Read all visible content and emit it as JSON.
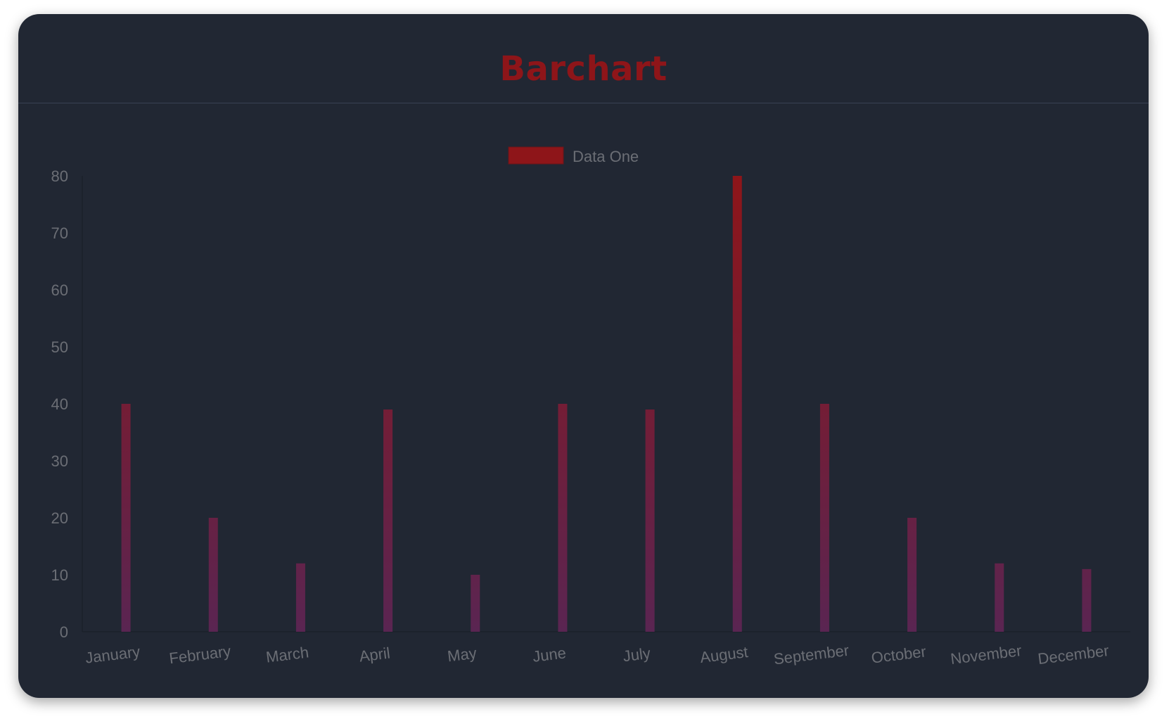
{
  "header": {
    "title": "Barchart"
  },
  "colors": {
    "background": "#212733",
    "title": "#8e1519",
    "bar_top": "#8e1519",
    "bar_bottom": "#5a2552",
    "text": "#6b6e75"
  },
  "chart_data": {
    "type": "bar",
    "title": "",
    "xlabel": "",
    "ylabel": "",
    "categories": [
      "January",
      "February",
      "March",
      "April",
      "May",
      "June",
      "July",
      "August",
      "September",
      "October",
      "November",
      "December"
    ],
    "series": [
      {
        "name": "Data One",
        "values": [
          40,
          20,
          12,
          39,
          10,
          40,
          39,
          80,
          40,
          20,
          12,
          11
        ]
      }
    ],
    "ylim": [
      0,
      80
    ],
    "yticks": [
      0,
      10,
      20,
      30,
      40,
      50,
      60,
      70,
      80
    ],
    "grid": false,
    "legend": "top-center"
  }
}
